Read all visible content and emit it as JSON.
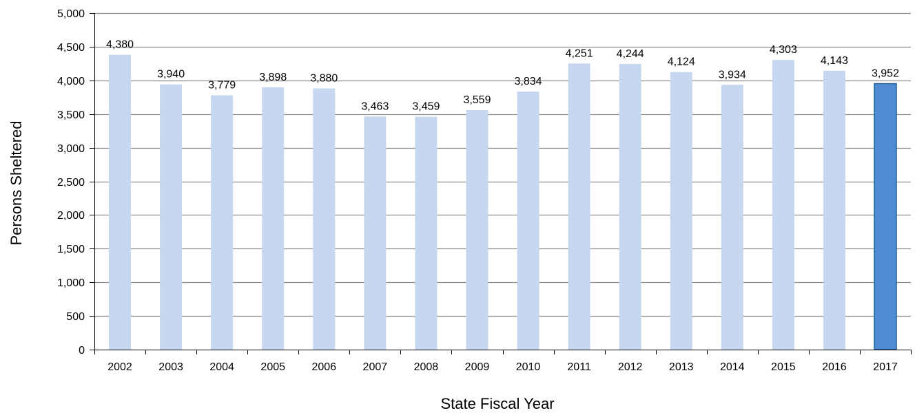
{
  "chart_data": {
    "type": "bar",
    "categories": [
      "2002",
      "2003",
      "2004",
      "2005",
      "2006",
      "2007",
      "2008",
      "2009",
      "2010",
      "2011",
      "2012",
      "2013",
      "2014",
      "2015",
      "2016",
      "2017"
    ],
    "values": [
      4380,
      3940,
      3779,
      3898,
      3880,
      3463,
      3459,
      3559,
      3834,
      4251,
      4244,
      4124,
      3934,
      4303,
      4143,
      3952
    ],
    "data_labels": [
      "4,380",
      "3,940",
      "3,779",
      "3,898",
      "3,880",
      "3,463",
      "3,459",
      "3,559",
      "3,834",
      "4,251",
      "4,244",
      "4,124",
      "3,934",
      "4,303",
      "4,143",
      "3,952"
    ],
    "xlabel": "State Fiscal Year",
    "ylabel": "Persons Sheltered",
    "ylim": [
      0,
      5000
    ],
    "yticks": [
      0,
      500,
      1000,
      1500,
      2000,
      2500,
      3000,
      3500,
      4000,
      4500,
      5000
    ],
    "ytick_labels": [
      "0",
      "500",
      "1,000",
      "1,500",
      "2,000",
      "2,500",
      "3,000",
      "3,500",
      "4,000",
      "4,500",
      "5,000"
    ],
    "grid": true,
    "legend": "none",
    "highlight_index": 15,
    "colors": {
      "bar": "#c6d7ef",
      "highlight_bar": "#4f8bd2",
      "highlight_border": "#1f5d95",
      "gridline": "#8c8c8c",
      "axis": "#000000"
    }
  }
}
